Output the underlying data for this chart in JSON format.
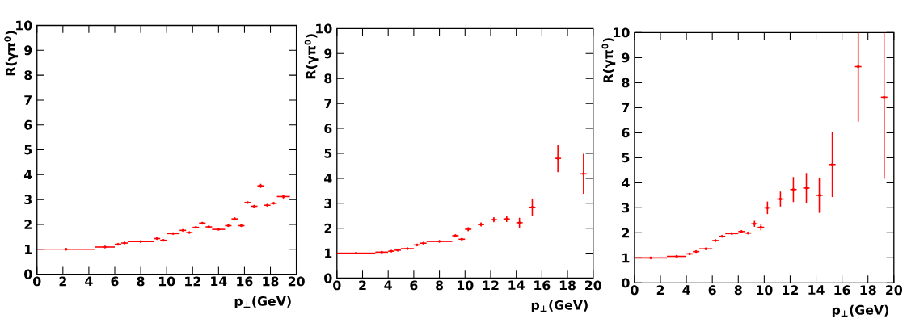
{
  "chart_data": [
    {
      "type": "scatter",
      "marker": "circle",
      "color": "#ff0000",
      "xlabel": "p$_{⊥}$(GeV)",
      "ylabel": "R(γπ$^{0}$)",
      "xlim": [
        0,
        20
      ],
      "ylim": [
        0,
        10
      ],
      "xticks": [
        0,
        2,
        4,
        6,
        8,
        10,
        12,
        14,
        16,
        18,
        20
      ],
      "yticks": [
        0,
        1,
        2,
        3,
        4,
        5,
        6,
        7,
        8,
        9,
        10
      ],
      "x": [
        2.25,
        5.25,
        6.25,
        6.75,
        8,
        9.25,
        9.75,
        10.5,
        11.25,
        11.75,
        12.25,
        12.75,
        13.25,
        14,
        14.75,
        15.25,
        15.75,
        16.25,
        16.75,
        17.25,
        17.75,
        18.25,
        19
      ],
      "values": [
        1.0,
        1.09,
        1.2,
        1.25,
        1.31,
        1.43,
        1.36,
        1.63,
        1.76,
        1.67,
        1.88,
        2.05,
        1.9,
        1.8,
        1.95,
        2.22,
        1.95,
        2.88,
        2.73,
        3.55,
        2.77,
        2.85,
        3.12
      ],
      "errors": [
        null,
        null,
        null,
        null,
        null,
        null,
        null,
        null,
        null,
        null,
        null,
        null,
        0.05,
        null,
        null,
        0.06,
        null,
        null,
        null,
        0.08,
        null,
        null,
        0.08
      ],
      "xerrors": [
        2.25,
        0.75,
        0.25,
        0.25,
        1,
        0.25,
        0.25,
        0.5,
        0.25,
        0.25,
        0.25,
        0.25,
        0.25,
        0.5,
        0.25,
        0.25,
        0.25,
        0.25,
        0.25,
        0.25,
        0.25,
        0.25,
        0.5
      ]
    },
    {
      "type": "scatter",
      "marker": "circle",
      "color": "#ff0000",
      "xlabel": "p$_{⊥}$(GeV)",
      "ylabel": "R(γπ$^{0}$)",
      "xlim": [
        0,
        20
      ],
      "ylim": [
        0,
        10
      ],
      "xticks": [
        0,
        2,
        4,
        6,
        8,
        10,
        12,
        14,
        16,
        18,
        20
      ],
      "yticks": [
        0,
        1,
        2,
        3,
        4,
        5,
        6,
        7,
        8,
        9,
        10
      ],
      "x": [
        1.5,
        3.5,
        4.25,
        4.75,
        5.5,
        6.25,
        6.75,
        8,
        9.25,
        9.75,
        10.25,
        11.25,
        12.25,
        13.25,
        14.25,
        15.25,
        17.25,
        19.25
      ],
      "values": [
        1.0,
        1.04,
        1.08,
        1.12,
        1.18,
        1.33,
        1.4,
        1.47,
        1.7,
        1.56,
        1.96,
        2.15,
        2.34,
        2.37,
        2.22,
        2.84,
        4.8,
        4.18
      ],
      "errors": [
        null,
        null,
        null,
        null,
        null,
        null,
        null,
        null,
        0.05,
        null,
        0.08,
        0.08,
        0.1,
        0.12,
        0.2,
        0.35,
        0.55,
        0.8
      ],
      "xerrors": [
        1.5,
        0.5,
        0.25,
        0.25,
        0.5,
        0.25,
        0.25,
        1,
        0.25,
        0.25,
        0.25,
        0.25,
        0.25,
        0.25,
        0.25,
        0.25,
        0.25,
        0.25
      ]
    },
    {
      "type": "scatter",
      "marker": "circle",
      "color": "#ff0000",
      "xlabel": "p$_{⊥}$(GeV)",
      "ylabel": "R(γπ$^{0}$)",
      "xlim": [
        0,
        20
      ],
      "ylim": [
        0,
        10
      ],
      "xticks": [
        0,
        2,
        4,
        6,
        8,
        10,
        12,
        14,
        16,
        18,
        20
      ],
      "yticks": [
        0,
        1,
        2,
        3,
        4,
        5,
        6,
        7,
        8,
        9,
        10
      ],
      "x": [
        1.25,
        3.25,
        4.25,
        4.75,
        5.5,
        6.25,
        6.75,
        7.5,
        8.25,
        8.75,
        9.25,
        9.75,
        10.25,
        11.25,
        12.25,
        13.25,
        14.25,
        15.25,
        17.25,
        19.25
      ],
      "values": [
        1.0,
        1.06,
        1.16,
        1.25,
        1.36,
        1.69,
        1.86,
        1.97,
        2.05,
        1.99,
        2.36,
        2.22,
        3.0,
        3.35,
        3.73,
        3.79,
        3.5,
        4.73,
        8.64,
        7.42
      ],
      "errors": [
        null,
        null,
        null,
        null,
        null,
        null,
        null,
        null,
        0.05,
        null,
        0.12,
        0.12,
        0.25,
        0.3,
        0.5,
        0.6,
        0.7,
        1.3,
        [
          6.44,
          10
        ],
        [
          4.16,
          10
        ]
      ],
      "xerrors": [
        1.25,
        0.75,
        0.25,
        0.25,
        0.5,
        0.25,
        0.25,
        0.5,
        0.25,
        0.25,
        0.25,
        0.25,
        0.25,
        0.25,
        0.25,
        0.25,
        0.25,
        0.25,
        0.25,
        0.25
      ]
    }
  ]
}
